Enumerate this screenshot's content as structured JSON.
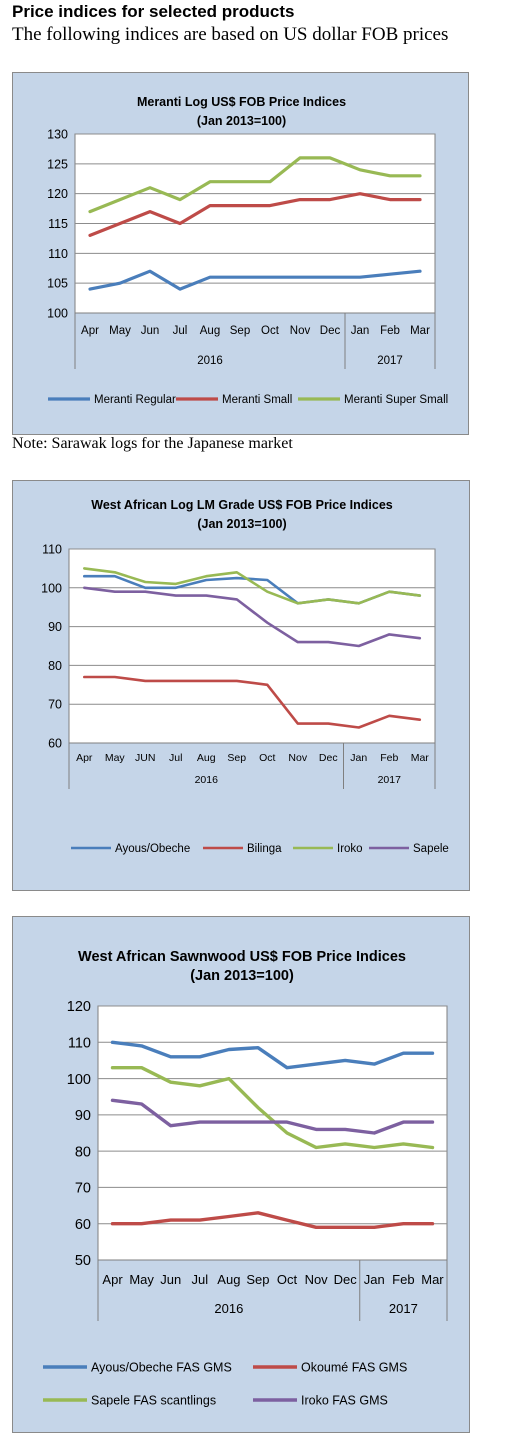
{
  "page": {
    "heading": "Price indices for selected products",
    "subheading": "The following indices are based on US dollar FOB prices",
    "note": "Note: Sarawak logs for the Japanese market"
  },
  "chart_data": [
    {
      "type": "line",
      "title": "Meranti Log US$ FOB Price Indices",
      "subtitle": "(Jan 2013=100)",
      "categories": [
        "Apr",
        "May",
        "Jun",
        "Jul",
        "Aug",
        "Sep",
        "Oct",
        "Nov",
        "Dec",
        "Jan",
        "Feb",
        "Mar"
      ],
      "groups": [
        {
          "label": "2016",
          "start": 0,
          "end": 8
        },
        {
          "label": "2017",
          "start": 9,
          "end": 11
        }
      ],
      "ylim": [
        100,
        130
      ],
      "yticks": [
        100,
        105,
        110,
        115,
        120,
        125,
        130
      ],
      "grid": true,
      "legend": "bottom",
      "series": [
        {
          "name": "Meranti Regular",
          "color": "#4a7ebb",
          "values": [
            104,
            105,
            107,
            104,
            106,
            106,
            106,
            106,
            106,
            106,
            106.5,
            107
          ]
        },
        {
          "name": "Meranti Small",
          "color": "#be4b48",
          "values": [
            113,
            115,
            117,
            115,
            118,
            118,
            118,
            119,
            119,
            120,
            119,
            119
          ]
        },
        {
          "name": "Meranti Super Small",
          "color": "#98b954",
          "values": [
            117,
            119,
            121,
            119,
            122,
            122,
            122,
            126,
            126,
            124,
            123,
            123
          ]
        }
      ]
    },
    {
      "type": "line",
      "title": "West African Log LM Grade US$ FOB Price Indices",
      "subtitle": "(Jan 2013=100)",
      "categories": [
        "Apr",
        "May",
        "JUN",
        "Jul",
        "Aug",
        "Sep",
        "Oct",
        "Nov",
        "Dec",
        "Jan",
        "Feb",
        "Mar"
      ],
      "groups": [
        {
          "label": "2016",
          "start": 0,
          "end": 8
        },
        {
          "label": "2017",
          "start": 9,
          "end": 11
        }
      ],
      "ylim": [
        60,
        110
      ],
      "yticks": [
        60,
        70,
        80,
        90,
        100,
        110
      ],
      "grid": true,
      "legend": "bottom",
      "series": [
        {
          "name": "Ayous/Obeche",
          "color": "#4a7ebb",
          "values": [
            103,
            103,
            100,
            100,
            102,
            102.5,
            102,
            96,
            97,
            96,
            99,
            98
          ]
        },
        {
          "name": "Bilinga",
          "color": "#be4b48",
          "values": [
            77,
            77,
            76,
            76,
            76,
            76,
            75,
            65,
            65,
            64,
            67,
            66
          ]
        },
        {
          "name": "Iroko",
          "color": "#98b954",
          "values": [
            105,
            104,
            101.5,
            101,
            103,
            104,
            99,
            96,
            97,
            96,
            99,
            98
          ]
        },
        {
          "name": "Sapele",
          "color": "#7d60a0",
          "values": [
            100,
            99,
            99,
            98,
            98,
            97,
            91,
            86,
            86,
            85,
            88,
            87
          ]
        }
      ]
    },
    {
      "type": "line",
      "title": "West African Sawnwood US$ FOB Price Indices",
      "subtitle": "(Jan 2013=100)",
      "categories": [
        "Apr",
        "May",
        "Jun",
        "Jul",
        "Aug",
        "Sep",
        "Oct",
        "Nov",
        "Dec",
        "Jan",
        "Feb",
        "Mar"
      ],
      "groups": [
        {
          "label": "2016",
          "start": 0,
          "end": 8
        },
        {
          "label": "2017",
          "start": 9,
          "end": 11
        }
      ],
      "ylim": [
        50,
        120
      ],
      "yticks": [
        50,
        60,
        70,
        80,
        90,
        100,
        110,
        120
      ],
      "grid": true,
      "legend": "bottom",
      "series": [
        {
          "name": "Ayous/Obeche  FAS GMS",
          "color": "#4a7ebb",
          "values": [
            110,
            109,
            106,
            106,
            108,
            108.5,
            103,
            104,
            105,
            104,
            107,
            107
          ]
        },
        {
          "name": "Okoumé  FAS GMS",
          "color": "#be4b48",
          "values": [
            60,
            60,
            61,
            61,
            62,
            63,
            61,
            59,
            59,
            59,
            60,
            60
          ]
        },
        {
          "name": "Sapele FAS scantlings",
          "color": "#98b954",
          "values": [
            103,
            103,
            99,
            98,
            100,
            92,
            85,
            81,
            82,
            81,
            82,
            81
          ]
        },
        {
          "name": "Iroko FAS GMS",
          "color": "#7d60a0",
          "values": [
            94,
            93,
            87,
            88,
            88,
            88,
            88,
            86,
            86,
            85,
            88,
            88
          ]
        }
      ]
    }
  ]
}
